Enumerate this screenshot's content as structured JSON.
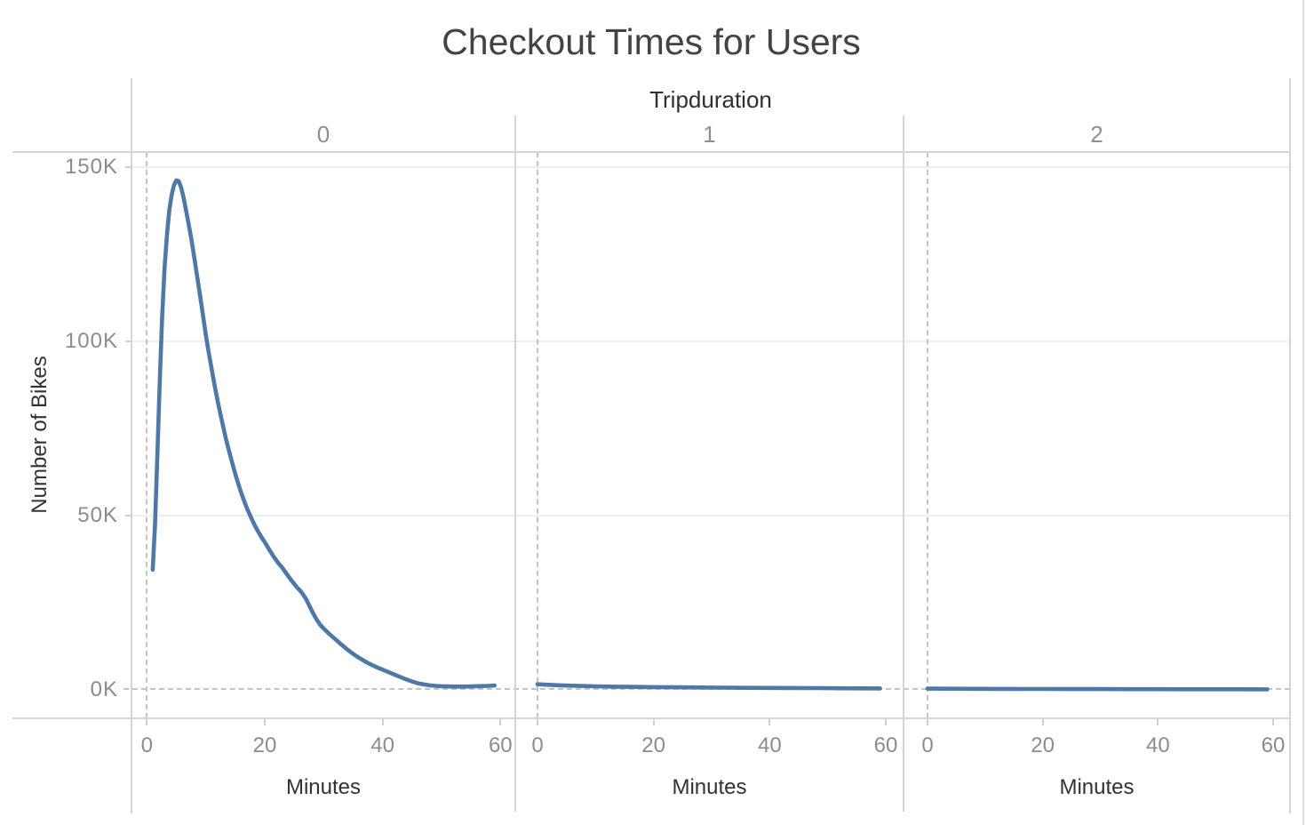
{
  "chart_data": {
    "type": "line",
    "title": "Checkout Times for Users",
    "facet_field": "Tripduration",
    "xlabel": "Minutes",
    "ylabel": "Number of Bikes",
    "x_ticks": [
      0,
      20,
      40,
      60
    ],
    "y_ticks": [
      {
        "value": 0,
        "label": "0K"
      },
      {
        "value": 50000,
        "label": "50K"
      },
      {
        "value": 100000,
        "label": "100K"
      },
      {
        "value": 150000,
        "label": "150K"
      }
    ],
    "x_range": [
      0,
      60
    ],
    "y_range": [
      0,
      150000
    ],
    "grid": {
      "horizontal_gridlines": true,
      "zero_lines_dashed": true,
      "legend": "none"
    },
    "line_color": "#4e79a7",
    "series": [
      {
        "facet_label": "0",
        "peak": {
          "minutes": 5,
          "bikes": 146000
        },
        "points": [
          [
            1,
            34500
          ],
          [
            1.4,
            48000
          ],
          [
            1.8,
            68000
          ],
          [
            2.2,
            89000
          ],
          [
            2.6,
            107000
          ],
          [
            3,
            121000
          ],
          [
            3.4,
            130500
          ],
          [
            3.8,
            137500
          ],
          [
            4.2,
            142000
          ],
          [
            4.6,
            144800
          ],
          [
            5,
            146200
          ],
          [
            5.4,
            146000
          ],
          [
            5.8,
            144200
          ],
          [
            6.2,
            141500
          ],
          [
            6.6,
            138000
          ],
          [
            7,
            134500
          ],
          [
            7.5,
            129800
          ],
          [
            8,
            124500
          ],
          [
            8.5,
            119000
          ],
          [
            9,
            113500
          ],
          [
            9.5,
            107800
          ],
          [
            10,
            102000
          ],
          [
            10.5,
            96800
          ],
          [
            11,
            92000
          ],
          [
            11.5,
            87300
          ],
          [
            12,
            83000
          ],
          [
            12.5,
            79000
          ],
          [
            13,
            75200
          ],
          [
            13.5,
            71500
          ],
          [
            14,
            68200
          ],
          [
            14.5,
            65000
          ],
          [
            15,
            62000
          ],
          [
            15.5,
            59200
          ],
          [
            16,
            56600
          ],
          [
            16.5,
            54200
          ],
          [
            17,
            52000
          ],
          [
            17.5,
            50100
          ],
          [
            18,
            48300
          ],
          [
            18.5,
            46600
          ],
          [
            19,
            45100
          ],
          [
            19.5,
            43700
          ],
          [
            20,
            42400
          ],
          [
            20.5,
            41000
          ],
          [
            21,
            39600
          ],
          [
            21.5,
            38300
          ],
          [
            22,
            37100
          ],
          [
            22.5,
            36000
          ],
          [
            23,
            35000
          ],
          [
            23.5,
            33800
          ],
          [
            24,
            32600
          ],
          [
            24.5,
            31500
          ],
          [
            25,
            30400
          ],
          [
            25.5,
            29400
          ],
          [
            26,
            28500
          ],
          [
            26.5,
            27400
          ],
          [
            27,
            26100
          ],
          [
            27.5,
            24400
          ],
          [
            28,
            22700
          ],
          [
            28.5,
            21100
          ],
          [
            29,
            19700
          ],
          [
            29.5,
            18500
          ],
          [
            30,
            17600
          ],
          [
            31,
            16000
          ],
          [
            32,
            14500
          ],
          [
            33,
            13000
          ],
          [
            34,
            11600
          ],
          [
            35,
            10300
          ],
          [
            36,
            9200
          ],
          [
            37,
            8200
          ],
          [
            38,
            7300
          ],
          [
            39,
            6500
          ],
          [
            40,
            5800
          ],
          [
            41,
            5100
          ],
          [
            42,
            4400
          ],
          [
            43,
            3700
          ],
          [
            44,
            3000
          ],
          [
            45,
            2400
          ],
          [
            46,
            1900
          ],
          [
            47,
            1550
          ],
          [
            48,
            1300
          ],
          [
            49,
            1150
          ],
          [
            50,
            1050
          ],
          [
            51,
            1000
          ],
          [
            52,
            950
          ],
          [
            53,
            950
          ],
          [
            54,
            950
          ],
          [
            55,
            1000
          ],
          [
            56,
            1050
          ],
          [
            57,
            1100
          ],
          [
            58,
            1150
          ],
          [
            59,
            1250
          ]
        ]
      },
      {
        "facet_label": "1",
        "points": [
          [
            0,
            1600
          ],
          [
            2,
            1450
          ],
          [
            4,
            1300
          ],
          [
            6,
            1200
          ],
          [
            8,
            1100
          ],
          [
            10,
            1020
          ],
          [
            13,
            930
          ],
          [
            16,
            860
          ],
          [
            20,
            790
          ],
          [
            24,
            730
          ],
          [
            28,
            680
          ],
          [
            32,
            630
          ],
          [
            36,
            590
          ],
          [
            40,
            560
          ],
          [
            44,
            530
          ],
          [
            48,
            500
          ],
          [
            52,
            470
          ],
          [
            56,
            440
          ],
          [
            59,
            420
          ]
        ]
      },
      {
        "facet_label": "2",
        "points": [
          [
            0,
            350
          ],
          [
            4,
            320
          ],
          [
            8,
            300
          ],
          [
            12,
            280
          ],
          [
            16,
            260
          ],
          [
            20,
            250
          ],
          [
            25,
            235
          ],
          [
            30,
            220
          ],
          [
            35,
            210
          ],
          [
            40,
            200
          ],
          [
            45,
            190
          ],
          [
            50,
            180
          ],
          [
            55,
            170
          ],
          [
            59,
            165
          ]
        ]
      }
    ]
  }
}
